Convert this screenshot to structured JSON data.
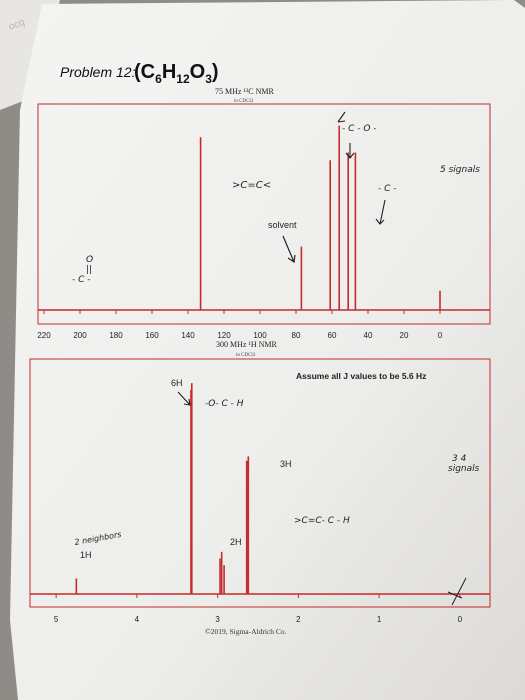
{
  "problem": {
    "label": "Problem 12:",
    "formula": {
      "c": "C",
      "c_sub": "6",
      "h": "H",
      "h_sub": "12",
      "o": "O",
      "o_sub": "3",
      "open": "(",
      "close": ")"
    }
  },
  "c13": {
    "title": "75 MHz ¹³C NMR",
    "solvent_line": "in CDCl3"
  },
  "h1": {
    "title": "300 MHz ¹H NMR",
    "solvent_line": "in CDCl3"
  },
  "annotations": {
    "c13_carbonyl": "O\n||\n- C -",
    "c13_alkene": ">C=C<",
    "c13_solvent": "solvent",
    "c13_ether_carbon": "- C - O -",
    "c13_alkyl": "- C -",
    "c13_signal_count": "5 signals",
    "h1_assume": "Assume all J values to be 5.6 Hz",
    "h1_6h": "6H",
    "h1_och": "-O- C - H",
    "h1_3h": "3H",
    "h1_2h": "2H",
    "h1_allylic": ">C=C- C - H",
    "h1_neighbors": "2 neighbors",
    "h1_1h": "1H",
    "h1_signal_count": "3 4\nsignals",
    "copyright": "©2019, Sigma-Aldrich Co."
  },
  "chart_data": [
    {
      "type": "line",
      "title": "75 MHz ¹³C NMR",
      "xlabel": "",
      "x_axis": "ppm (reversed)",
      "xlim": [
        220,
        0
      ],
      "tick_labels": [
        "220",
        "200",
        "180",
        "160",
        "140",
        "120",
        "100",
        "80",
        "60",
        "40",
        "20",
        "0"
      ],
      "peaks": [
        {
          "ppm": 133,
          "height": 0.9
        },
        {
          "ppm": 77,
          "height": 0.33
        },
        {
          "ppm": 61,
          "height": 0.78
        },
        {
          "ppm": 56,
          "height": 0.96
        },
        {
          "ppm": 51,
          "height": 0.82
        },
        {
          "ppm": 47,
          "height": 0.82
        },
        {
          "ppm": 0,
          "height": 0.1
        }
      ],
      "grid": false,
      "line_color": "#c42b2b"
    },
    {
      "type": "line",
      "title": "300 MHz ¹H NMR",
      "xlabel": "",
      "x_axis": "ppm (reversed)",
      "xlim": [
        5.2,
        -0.2
      ],
      "tick_labels": [
        "5",
        "4",
        "3",
        "2",
        "1",
        "0"
      ],
      "peaks": [
        {
          "ppm": 4.75,
          "height": 0.07
        },
        {
          "ppm": 3.33,
          "height": 0.92
        },
        {
          "ppm": 3.32,
          "height": 0.95
        },
        {
          "ppm": 2.97,
          "height": 0.16
        },
        {
          "ppm": 2.95,
          "height": 0.19
        },
        {
          "ppm": 2.92,
          "height": 0.13
        },
        {
          "ppm": 2.64,
          "height": 0.6
        },
        {
          "ppm": 2.62,
          "height": 0.62
        }
      ],
      "grid": false,
      "line_color": "#c42b2b"
    }
  ]
}
